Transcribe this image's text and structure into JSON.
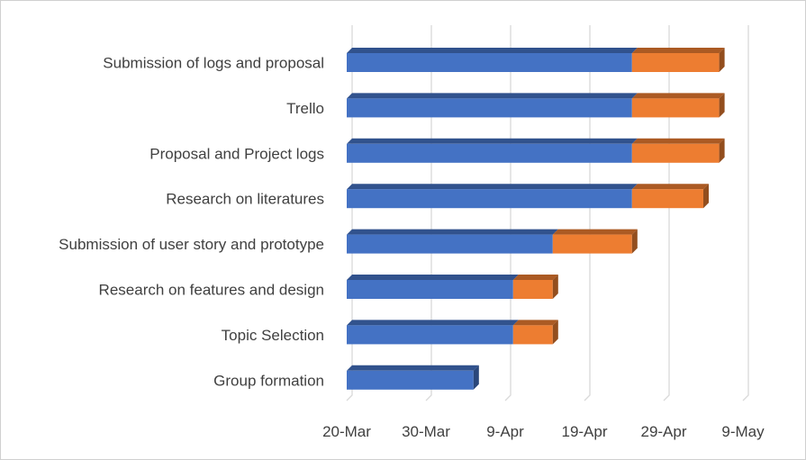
{
  "chart_data": {
    "type": "bar",
    "orientation": "horizontal",
    "stacked": true,
    "three_d": true,
    "grid": true,
    "legend": "none",
    "categories": [
      "Submission of logs and proposal",
      "Trello",
      "Proposal and Project logs",
      "Research on literatures",
      "Submission of user story and prototype",
      "Research on features and design",
      "Topic Selection",
      "Group formation"
    ],
    "series": [
      {
        "values": [
          "2020-03-20",
          "2020-03-20",
          "2020-03-20",
          "2020-03-20",
          "2020-03-20",
          "2020-03-20",
          "2020-03-20",
          "2020-03-20"
        ],
        "color": "#4472C4",
        "visible": false
      },
      {
        "values": [
          "2020-04-25",
          "2020-04-25",
          "2020-04-25",
          "2020-04-25",
          "2020-04-15",
          "2020-04-10",
          "2020-04-10",
          "2020-04-05"
        ],
        "color": "#4472C4"
      },
      {
        "values": [
          "2020-05-06",
          "2020-05-06",
          "2020-05-06",
          "2020-05-04",
          "2020-04-25",
          "2020-04-15",
          "2020-04-15",
          "2020-04-05"
        ],
        "color": "#ED7D31"
      }
    ],
    "x_ticks": [
      "20-Mar",
      "30-Mar",
      "9-Apr",
      "19-Apr",
      "29-Apr",
      "9-May"
    ],
    "xlim": [
      "2020-03-20",
      "2020-05-09"
    ]
  }
}
